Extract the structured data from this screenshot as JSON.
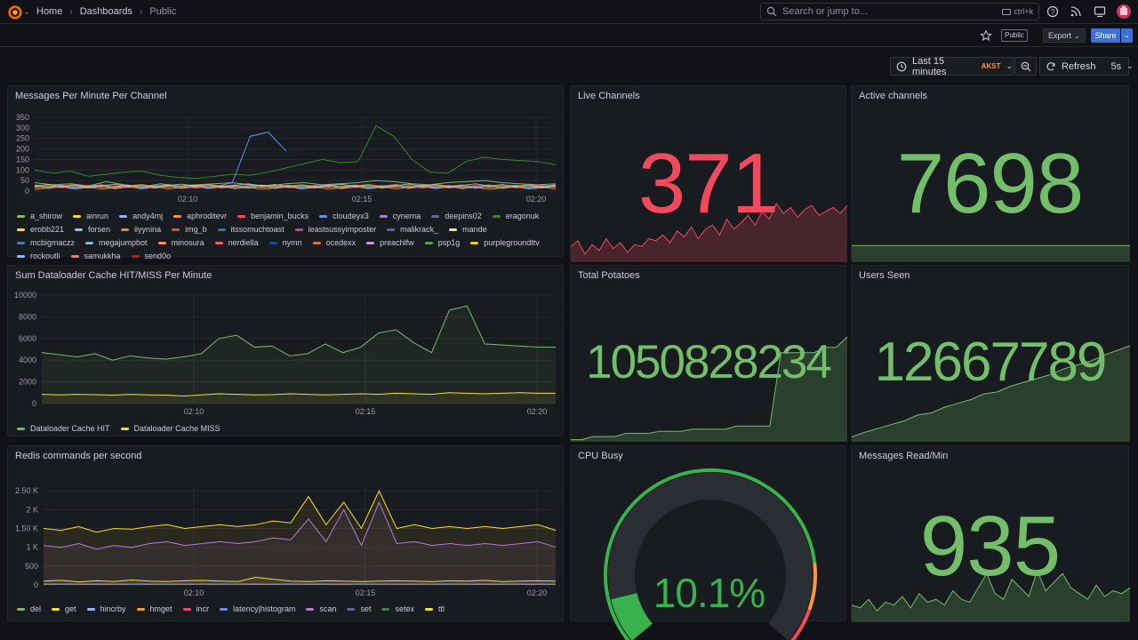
{
  "topbar": {
    "breadcrumbs": [
      "Home",
      "Dashboards",
      "Public"
    ],
    "search_placeholder": "Search or jump to...",
    "search_shortcut": "ctrl+k"
  },
  "toolbar": {
    "public_badge": "Public",
    "export_label": "Export",
    "share_label": "Share",
    "time_range": "Last 15 minutes",
    "timezone": "AKST",
    "refresh_label": "Refresh",
    "refresh_interval": "5s"
  },
  "colors": {
    "green": "#73bf69",
    "red": "#f2495c",
    "yellow": "#fade2a",
    "purple": "#b877d9"
  },
  "panels": {
    "messages_per_minute": {
      "title": "Messages Per Minute Per Channel",
      "legend": [
        {
          "name": "a_shirow",
          "color": "#73bf69"
        },
        {
          "name": "ainrun",
          "color": "#fade2a"
        },
        {
          "name": "andy4mj",
          "color": "#8ab8ff"
        },
        {
          "name": "aphroditevr",
          "color": "#ff9830"
        },
        {
          "name": "benjamin_bucks",
          "color": "#f2495c"
        },
        {
          "name": "cloudeyx3",
          "color": "#5794f2"
        },
        {
          "name": "cynema",
          "color": "#b877d9"
        },
        {
          "name": "deepins02",
          "color": "#705da0"
        },
        {
          "name": "eragonuk",
          "color": "#37872d"
        },
        {
          "name": "erobb221",
          "color": "#fade2a"
        },
        {
          "name": "forsen",
          "color": "#6ed0e0"
        },
        {
          "name": "iiyynina",
          "color": "#ef843c"
        },
        {
          "name": "img_b",
          "color": "#e24d42"
        },
        {
          "name": "itssomuchtoast",
          "color": "#1f78c1"
        },
        {
          "name": "leastsussyimposter",
          "color": "#ba43a9"
        },
        {
          "name": "malikrack_",
          "color": "#705da0"
        },
        {
          "name": "mande",
          "color": "#e5e5a6"
        },
        {
          "name": "mcbigmaczz",
          "color": "#447ebc"
        },
        {
          "name": "megajumpbot",
          "color": "#82b5d8"
        },
        {
          "name": "minosura",
          "color": "#f9934e"
        },
        {
          "name": "nerdiella",
          "color": "#ea6460"
        },
        {
          "name": "nymn",
          "color": "#0a50a1"
        },
        {
          "name": "ocedexx",
          "color": "#e0752d"
        },
        {
          "name": "preachlfw",
          "color": "#ca95e5"
        },
        {
          "name": "psp1g",
          "color": "#56a64b"
        },
        {
          "name": "purplegroundttv",
          "color": "#f2cc0c"
        },
        {
          "name": "rockoutli",
          "color": "#8ab8ff"
        },
        {
          "name": "samukkha",
          "color": "#ff7383"
        },
        {
          "name": "send0o",
          "color": "#c4162a"
        }
      ]
    },
    "dataloader": {
      "title": "Sum Dataloader Cache HIT/MISS Per Minute",
      "legend": [
        {
          "name": "Dataloader Cache HIT",
          "color": "#73bf69"
        },
        {
          "name": "Dataloader Cache MISS",
          "color": "#fade2a"
        }
      ]
    },
    "redis": {
      "title": "Redis commands per second",
      "legend": [
        {
          "name": "del",
          "color": "#73bf69"
        },
        {
          "name": "get",
          "color": "#fade2a"
        },
        {
          "name": "hincrby",
          "color": "#8ab8ff"
        },
        {
          "name": "hmget",
          "color": "#ff9830"
        },
        {
          "name": "incr",
          "color": "#f2495c"
        },
        {
          "name": "latency|histogram",
          "color": "#5794f2"
        },
        {
          "name": "scan",
          "color": "#b877d9"
        },
        {
          "name": "set",
          "color": "#705da0"
        },
        {
          "name": "setex",
          "color": "#37872d"
        },
        {
          "name": "ttl",
          "color": "#fade2a"
        }
      ]
    },
    "live_channels": {
      "title": "Live Channels",
      "value": "371"
    },
    "active_channels": {
      "title": "Active channels",
      "value": "7698"
    },
    "total_potatoes": {
      "title": "Total Potatoes",
      "value": "1050828234"
    },
    "users_seen": {
      "title": "Users Seen",
      "value": "12667789"
    },
    "cpu_busy": {
      "title": "CPU Busy",
      "value": "10.1%",
      "percent": 10.1
    },
    "messages_read": {
      "title": "Messages Read/Min",
      "value": "935"
    }
  },
  "chart_data": [
    {
      "type": "line",
      "title": "Messages Per Minute Per Channel",
      "x_ticks": [
        "02:10",
        "02:15",
        "02:20"
      ],
      "y_ticks": [
        "0",
        "50",
        "100",
        "150",
        "200",
        "250",
        "300",
        "350"
      ],
      "ylim": [
        0,
        350
      ],
      "series": [
        {
          "name": "eragonuk",
          "values": [
            100,
            85,
            95,
            70,
            80,
            90,
            95,
            75,
            65,
            60,
            70,
            80,
            75,
            90,
            110,
            130,
            150,
            135,
            140,
            310,
            260,
            150,
            90,
            85,
            140,
            160,
            150,
            145,
            140,
            125
          ]
        },
        {
          "name": "cloudeyx3",
          "values": [
            null,
            null,
            null,
            null,
            null,
            null,
            null,
            null,
            null,
            null,
            20,
            40,
            260,
            280,
            190,
            null,
            null,
            null,
            null,
            null,
            null,
            null,
            null,
            null,
            null,
            null,
            null,
            null,
            null,
            null
          ]
        },
        {
          "name": "a_shirow",
          "values": [
            40,
            30,
            35,
            25,
            45,
            30,
            20,
            35,
            25,
            30,
            35,
            40,
            30,
            25,
            35,
            40,
            30,
            35,
            40,
            50,
            45,
            35,
            30,
            40,
            45,
            50,
            40,
            35,
            30,
            35
          ]
        }
      ]
    },
    {
      "type": "line",
      "title": "Sum Dataloader Cache HIT/MISS Per Minute",
      "x_ticks": [
        "02:10",
        "02:15",
        "02:20"
      ],
      "y_ticks": [
        "0",
        "2000",
        "4000",
        "6000",
        "8000",
        "10000"
      ],
      "ylim": [
        0,
        10000
      ],
      "series": [
        {
          "name": "Dataloader Cache HIT",
          "values": [
            4700,
            4500,
            4300,
            4600,
            4000,
            4400,
            4200,
            4100,
            4300,
            4600,
            6000,
            6300,
            5200,
            5300,
            4400,
            4600,
            5500,
            4700,
            5200,
            6500,
            6800,
            5600,
            4700,
            8600,
            9000,
            5500,
            5400,
            5300,
            5200,
            5200
          ]
        },
        {
          "name": "Dataloader Cache MISS",
          "values": [
            850,
            800,
            850,
            820,
            780,
            850,
            800,
            780,
            700,
            800,
            900,
            850,
            800,
            820,
            900,
            850,
            800,
            850,
            900,
            850,
            950,
            900,
            850,
            1000,
            950,
            900,
            950,
            1000,
            950,
            950
          ]
        }
      ]
    },
    {
      "type": "line",
      "title": "Redis commands per second",
      "x_ticks": [
        "02:10",
        "02:15",
        "02:20"
      ],
      "y_ticks": [
        "0",
        "500",
        "1 K",
        "1.50 K",
        "2 K",
        "2.50 K"
      ],
      "ylim": [
        0,
        2600
      ],
      "series": [
        {
          "name": "ttl",
          "values": [
            1500,
            1450,
            1550,
            1400,
            1500,
            1480,
            1550,
            1600,
            1500,
            1550,
            1600,
            1550,
            1600,
            1700,
            1650,
            2350,
            1600,
            2200,
            1500,
            2500,
            1500,
            1600,
            1500,
            1550,
            1500,
            1550,
            1500,
            1550,
            1600,
            1450
          ]
        },
        {
          "name": "scan",
          "values": [
            1050,
            1000,
            1100,
            950,
            1050,
            1000,
            1100,
            1150,
            1050,
            1100,
            1150,
            1100,
            1150,
            1250,
            1200,
            1750,
            1150,
            2000,
            1050,
            2200,
            1100,
            1150,
            1050,
            1100,
            1050,
            1100,
            1050,
            1100,
            1150,
            1000
          ]
        },
        {
          "name": "get",
          "values": [
            100,
            120,
            80,
            110,
            90,
            130,
            100,
            90,
            110,
            120,
            100,
            90,
            200,
            150,
            100,
            90,
            110,
            100,
            90,
            100,
            110,
            100,
            90,
            110,
            100,
            120,
            90,
            100,
            110,
            100
          ]
        }
      ]
    }
  ],
  "sparklines": {
    "live_channels": [
      40,
      55,
      20,
      45,
      30,
      60,
      35,
      50,
      25,
      45,
      40,
      60,
      55,
      70,
      50,
      80,
      65,
      90,
      60,
      85,
      95,
      70,
      110,
      85,
      100,
      120,
      95,
      130,
      110,
      150,
      125,
      140,
      115,
      135,
      145,
      120,
      130,
      140,
      125,
      145
    ],
    "active_channels": [
      50,
      50,
      50,
      50,
      50,
      50,
      50,
      50,
      50,
      50
    ],
    "total_potatoes": [
      2,
      2,
      5,
      5,
      5,
      8,
      8,
      8,
      10,
      10,
      10,
      12,
      12,
      12,
      12,
      15,
      15,
      15,
      15,
      85,
      85,
      85,
      85,
      90,
      90,
      100
    ],
    "users_seen": [
      5,
      10,
      14,
      18,
      22,
      28,
      30,
      36,
      40,
      44,
      50,
      52,
      58,
      62,
      66,
      70,
      76,
      80,
      84,
      90,
      95,
      100
    ],
    "messages_read": [
      30,
      25,
      40,
      20,
      35,
      30,
      45,
      25,
      50,
      35,
      40,
      30,
      55,
      40,
      35,
      60,
      85,
      50,
      40,
      75,
      60,
      45,
      90,
      55,
      70,
      85,
      60,
      50,
      40,
      65,
      45,
      55,
      50,
      60
    ]
  }
}
